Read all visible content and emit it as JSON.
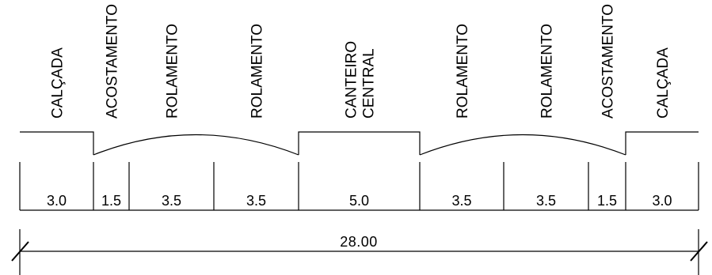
{
  "segments": [
    {
      "label": [
        "CALÇADA"
      ],
      "width": "3.0"
    },
    {
      "label": [
        "ACOSTAMENTO"
      ],
      "width": "1.5"
    },
    {
      "label": [
        "ROLAMENTO"
      ],
      "width": "3.5"
    },
    {
      "label": [
        "ROLAMENTO"
      ],
      "width": "3.5"
    },
    {
      "label": [
        "CANTEIRO",
        "CENTRAL"
      ],
      "width": "5.0"
    },
    {
      "label": [
        "ROLAMENTO"
      ],
      "width": "3.5"
    },
    {
      "label": [
        "ROLAMENTO"
      ],
      "width": "3.5"
    },
    {
      "label": [
        "ACOSTAMENTO"
      ],
      "width": "1.5"
    },
    {
      "label": [
        "CALÇADA"
      ],
      "width": "3.0"
    }
  ],
  "total_width": "28.00"
}
